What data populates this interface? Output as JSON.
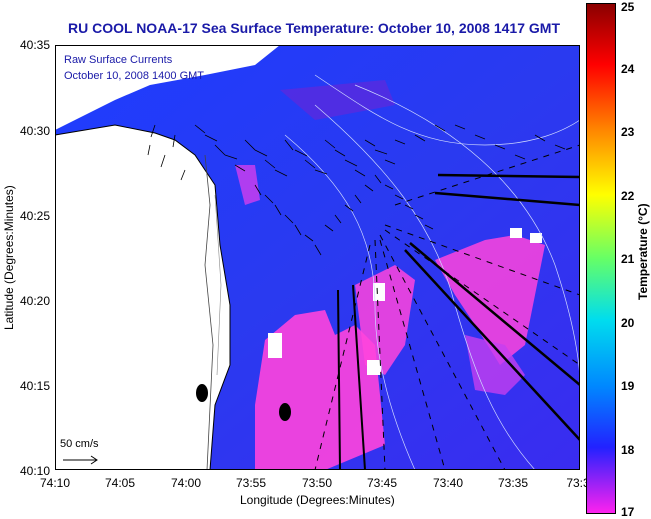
{
  "title": "RU COOL  NOAA-17  Sea Surface Temperature:  October 10, 2008 1417 GMT",
  "inlay_line1": "Raw Surface Currents",
  "inlay_line2": "October 10, 2008 1400 GMT",
  "scale_label": "50 cm/s",
  "axes": {
    "xlabel": "Longitude (Degrees:Minutes)",
    "ylabel": "Latitude (Degrees:Minutes)",
    "xticks": [
      "74:10",
      "74:05",
      "74:00",
      "73:55",
      "73:50",
      "73:45",
      "73:40",
      "73:35",
      "73:3"
    ],
    "yticks": [
      "40:35",
      "40:30",
      "40:25",
      "40:20",
      "40:15",
      "40:10"
    ]
  },
  "colorbar": {
    "label": "Temperature (°C)",
    "ticks": [
      "25",
      "24",
      "23",
      "22",
      "21",
      "20",
      "19",
      "18",
      "17"
    ],
    "min": 17,
    "max": 25
  },
  "colors": {
    "title": "#1a1aa8",
    "land": "#ffffff",
    "sst_warm": "#2244ff",
    "sst_cool": "#ff44dd"
  }
}
